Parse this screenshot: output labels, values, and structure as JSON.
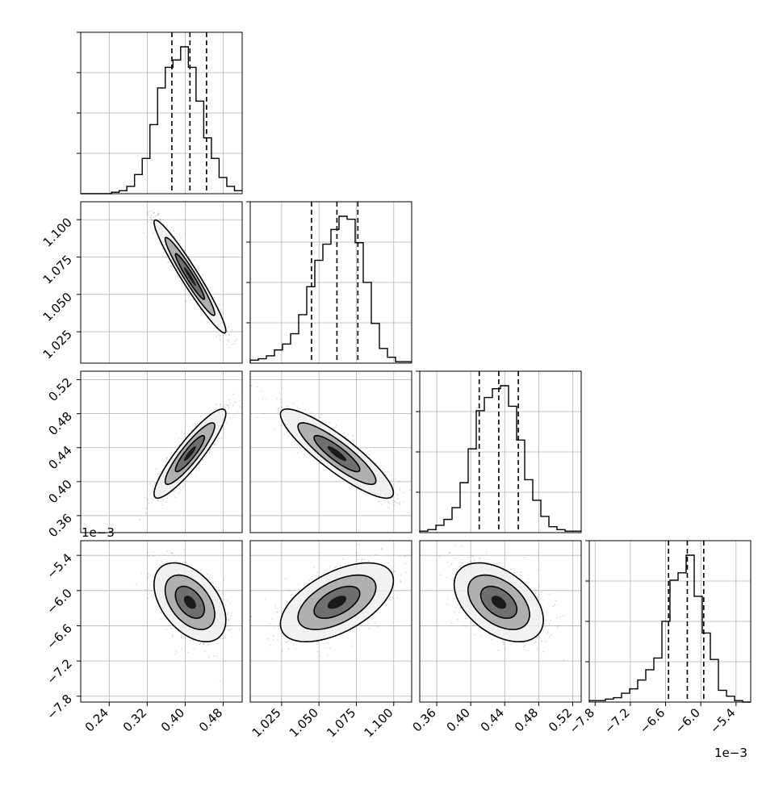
{
  "chart_data": {
    "type": "corner",
    "n_params": 4,
    "scale_labels": [
      "1e−3",
      "1e−3"
    ],
    "params": [
      {
        "ticks": [
          0.24,
          0.32,
          0.4,
          0.48
        ],
        "tick_labels": [
          "0.24",
          "0.32",
          "0.40",
          "0.48"
        ],
        "range": [
          0.18,
          0.52
        ],
        "quantiles": [
          0.372,
          0.41,
          0.445
        ],
        "hist": [
          0,
          0,
          0,
          0,
          0.01,
          0.02,
          0.05,
          0.13,
          0.24,
          0.47,
          0.72,
          0.86,
          0.91,
          1.0,
          0.86,
          0.63,
          0.38,
          0.24,
          0.11,
          0.05,
          0.02
        ]
      },
      {
        "ticks": [
          1.025,
          1.05,
          1.075,
          1.1
        ],
        "tick_labels": [
          "1.025",
          "1.050",
          "1.075",
          "1.100"
        ],
        "range": [
          1.004,
          1.112
        ],
        "quantiles": [
          1.045,
          1.062,
          1.076
        ],
        "hist": [
          0.02,
          0.03,
          0.05,
          0.09,
          0.13,
          0.2,
          0.33,
          0.52,
          0.7,
          0.81,
          0.91,
          1.0,
          0.98,
          0.82,
          0.55,
          0.27,
          0.1,
          0.04,
          0.01,
          0.01
        ]
      },
      {
        "ticks": [
          0.36,
          0.4,
          0.44,
          0.48,
          0.52
        ],
        "tick_labels": [
          "0.36",
          "0.40",
          "0.44",
          "0.48",
          "0.52"
        ],
        "range": [
          0.34,
          0.53
        ],
        "quantiles": [
          0.41,
          0.433,
          0.456
        ],
        "hist": [
          0.01,
          0.02,
          0.05,
          0.09,
          0.17,
          0.34,
          0.57,
          0.83,
          0.92,
          0.98,
          1.0,
          0.86,
          0.63,
          0.36,
          0.22,
          0.11,
          0.04,
          0.02,
          0.01,
          0.01
        ]
      },
      {
        "ticks": [
          -7.8,
          -7.2,
          -6.6,
          -6.0,
          -5.4
        ],
        "tick_labels": [
          "−7.8",
          "−7.2",
          "−6.6",
          "−6.0",
          "−5.4"
        ],
        "range": [
          -7.9,
          -5.15
        ],
        "quantiles": [
          -6.55,
          -6.23,
          -5.95
        ],
        "hist": [
          0.01,
          0.01,
          0.02,
          0.03,
          0.06,
          0.09,
          0.15,
          0.22,
          0.3,
          0.55,
          0.83,
          0.88,
          1.0,
          0.72,
          0.47,
          0.29,
          0.08,
          0.04,
          0.01,
          0.0
        ]
      }
    ],
    "pairs": [
      {
        "row": 1,
        "col": 0,
        "mean": [
          0.41,
          1.062
        ],
        "sd": [
          0.036,
          0.018
        ],
        "rho": -0.96
      },
      {
        "row": 2,
        "col": 0,
        "mean": [
          0.41,
          0.433
        ],
        "sd": [
          0.036,
          0.025
        ],
        "rho": 0.9
      },
      {
        "row": 2,
        "col": 1,
        "mean": [
          1.062,
          0.433
        ],
        "sd": [
          0.018,
          0.025
        ],
        "rho": -0.88
      },
      {
        "row": 3,
        "col": 0,
        "mean": [
          0.41,
          -6.2
        ],
        "sd": [
          0.036,
          0.32
        ],
        "rho": -0.45
      },
      {
        "row": 3,
        "col": 1,
        "mean": [
          1.062,
          -6.2
        ],
        "sd": [
          0.018,
          0.32
        ],
        "rho": 0.55
      },
      {
        "row": 3,
        "col": 2,
        "mean": [
          0.433,
          -6.2
        ],
        "sd": [
          0.025,
          0.32
        ],
        "rho": -0.45
      }
    ],
    "grid": true,
    "legend": "none"
  }
}
